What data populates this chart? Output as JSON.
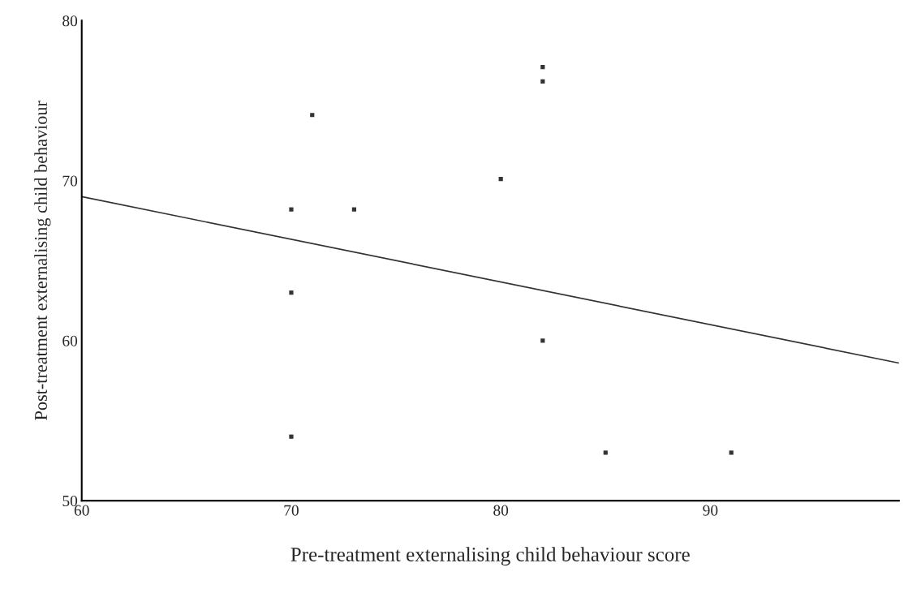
{
  "chart_data": {
    "type": "scatter",
    "xlabel": "Pre-treatment externalising child behaviour score",
    "ylabel": "Post-treatment externalising child behaviour",
    "xlim": [
      60,
      99
    ],
    "ylim": [
      50,
      80
    ],
    "xticks": [
      60,
      70,
      80,
      90
    ],
    "yticks": [
      50,
      60,
      70,
      80
    ],
    "grid": false,
    "legend": false,
    "series": [
      {
        "marker": "square",
        "color": "#333333",
        "x": [
          70,
          70,
          70,
          71,
          73,
          80,
          82,
          82,
          82,
          85,
          91
        ],
        "values": [
          68.2,
          63.0,
          54.0,
          74.1,
          68.2,
          70.1,
          77.1,
          76.2,
          60.0,
          53.0,
          53.0
        ]
      },
      {
        "type": "line",
        "marker": "none",
        "color": "#333333",
        "x": [
          60,
          99
        ],
        "values": [
          69.0,
          58.6
        ]
      }
    ]
  }
}
